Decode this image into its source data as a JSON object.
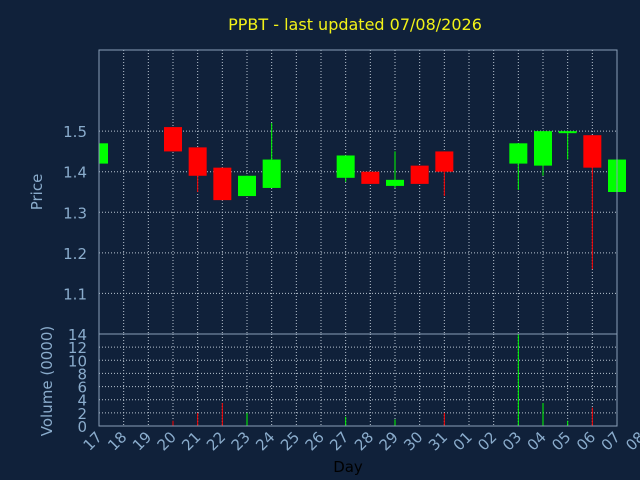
{
  "chart_data": {
    "type": "candlestick",
    "title": "PPBT - last updated 07/08/2026",
    "xlabel": "Day",
    "price_panel": {
      "ylabel": "Price",
      "ylim": [
        1.0,
        1.7
      ],
      "yticks": [
        "1.1",
        "1.2",
        "1.3",
        "1.4",
        "1.5"
      ],
      "grid": true
    },
    "volume_panel": {
      "ylabel": "Volume (0000)",
      "ylim": [
        0,
        14
      ],
      "yticks": [
        "0",
        "2",
        "4",
        "6",
        "8",
        "10",
        "12",
        "14"
      ],
      "grid": true
    },
    "x_tick_labels": [
      "17",
      "18",
      "19",
      "20",
      "21",
      "22",
      "23",
      "24",
      "25",
      "26",
      "27",
      "28",
      "29",
      "30",
      "31",
      "01",
      "02",
      "03",
      "04",
      "05",
      "06",
      "07",
      "08"
    ],
    "candles": [
      {
        "day": "17",
        "open": 1.42,
        "close": 1.47,
        "high": 1.47,
        "low": 1.42,
        "volume": 0.0
      },
      {
        "day": "20",
        "open": 1.51,
        "close": 1.45,
        "high": 1.51,
        "low": 1.45,
        "volume": 0.8
      },
      {
        "day": "21",
        "open": 1.46,
        "close": 1.39,
        "high": 1.46,
        "low": 1.35,
        "volume": 2.0
      },
      {
        "day": "22",
        "open": 1.41,
        "close": 1.33,
        "high": 1.41,
        "low": 1.33,
        "volume": 3.5
      },
      {
        "day": "23",
        "open": 1.34,
        "close": 1.39,
        "high": 1.39,
        "low": 1.34,
        "volume": 2.0
      },
      {
        "day": "24",
        "open": 1.36,
        "close": 1.43,
        "high": 1.52,
        "low": 1.36,
        "volume": 0.0
      },
      {
        "day": "27",
        "open": 1.385,
        "close": 1.44,
        "high": 1.44,
        "low": 1.375,
        "volume": 1.4
      },
      {
        "day": "28",
        "open": 1.4,
        "close": 1.37,
        "high": 1.4,
        "low": 1.37,
        "volume": 0.0
      },
      {
        "day": "29",
        "open": 1.365,
        "close": 1.38,
        "high": 1.45,
        "low": 1.36,
        "volume": 1.0
      },
      {
        "day": "30",
        "open": 1.415,
        "close": 1.37,
        "high": 1.415,
        "low": 1.37,
        "volume": 0.0
      },
      {
        "day": "31",
        "open": 1.45,
        "close": 1.4,
        "high": 1.45,
        "low": 1.34,
        "volume": 2.0
      },
      {
        "day": "03",
        "open": 1.42,
        "close": 1.47,
        "high": 1.47,
        "low": 1.355,
        "volume": 14.0
      },
      {
        "day": "04",
        "open": 1.415,
        "close": 1.5,
        "high": 1.5,
        "low": 1.39,
        "volume": 3.5
      },
      {
        "day": "05",
        "open": 1.495,
        "close": 1.5,
        "high": 1.5,
        "low": 1.43,
        "volume": 0.8
      },
      {
        "day": "06",
        "open": 1.49,
        "close": 1.41,
        "high": 1.49,
        "low": 1.16,
        "volume": 2.8
      },
      {
        "day": "07",
        "open": 1.35,
        "close": 1.43,
        "high": 1.43,
        "low": 1.26,
        "volume": 5.0
      }
    ],
    "colors": {
      "background": "#10213a",
      "plot_border": "#8aa0b8",
      "grid": "#b8c4d0",
      "title": "#f2f218",
      "axis_text": "#8aaccc",
      "up": "#00ff00",
      "down": "#ff0000"
    }
  }
}
